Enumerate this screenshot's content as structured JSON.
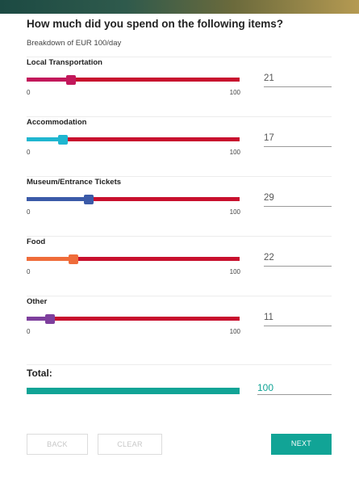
{
  "header": {
    "title": "How much did you spend on the following items?",
    "subtitle": "Breakdown of EUR 100/day"
  },
  "colors": {
    "accent": "#11a496",
    "track": "#c8102e"
  },
  "sliders": [
    {
      "label": "Local Transportation",
      "value": "21",
      "level": 21,
      "min": "0",
      "max": "100",
      "color": "#c2185b"
    },
    {
      "label": "Accommodation",
      "value": "17",
      "level": 17,
      "min": "0",
      "max": "100",
      "color": "#1fb6d0"
    },
    {
      "label": "Museum/Entrance Tickets",
      "value": "29",
      "level": 29,
      "min": "0",
      "max": "100",
      "color": "#3b5aa8"
    },
    {
      "label": "Food",
      "value": "22",
      "level": 22,
      "min": "0",
      "max": "100",
      "color": "#ef6c3a"
    },
    {
      "label": "Other",
      "value": "11",
      "level": 11,
      "min": "0",
      "max": "100",
      "color": "#7e3f9d"
    }
  ],
  "total": {
    "label": "Total:",
    "value": "100"
  },
  "buttons": {
    "back": "BACK",
    "clear": "CLEAR",
    "next": "NEXT"
  }
}
